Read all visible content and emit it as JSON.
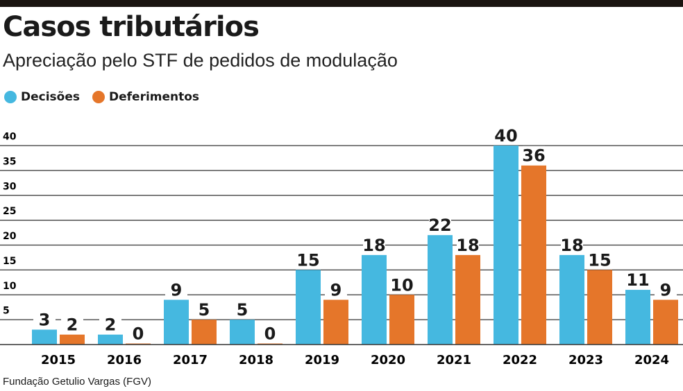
{
  "title": "Casos tributários",
  "subtitle": "Apreciação pelo STF de pedidos de modulação",
  "source": "Fundação Getulio Vargas (FGV)",
  "colors": {
    "decisoes": "#45b8e0",
    "deferimentos": "#e5762a"
  },
  "chart_data": {
    "type": "bar",
    "categories": [
      "2015",
      "2016",
      "2017",
      "2018",
      "2019",
      "2020",
      "2021",
      "2022",
      "2023",
      "2024"
    ],
    "series": [
      {
        "name": "Decisões",
        "values": [
          3,
          2,
          9,
          5,
          15,
          18,
          22,
          40,
          18,
          11
        ]
      },
      {
        "name": "Deferimentos",
        "values": [
          2,
          0,
          5,
          0,
          9,
          10,
          18,
          36,
          15,
          9
        ]
      }
    ],
    "yticks": [
      5,
      10,
      15,
      20,
      25,
      30,
      35,
      40
    ],
    "ylim": [
      0,
      40
    ],
    "grid": true,
    "legend": "top-left"
  }
}
